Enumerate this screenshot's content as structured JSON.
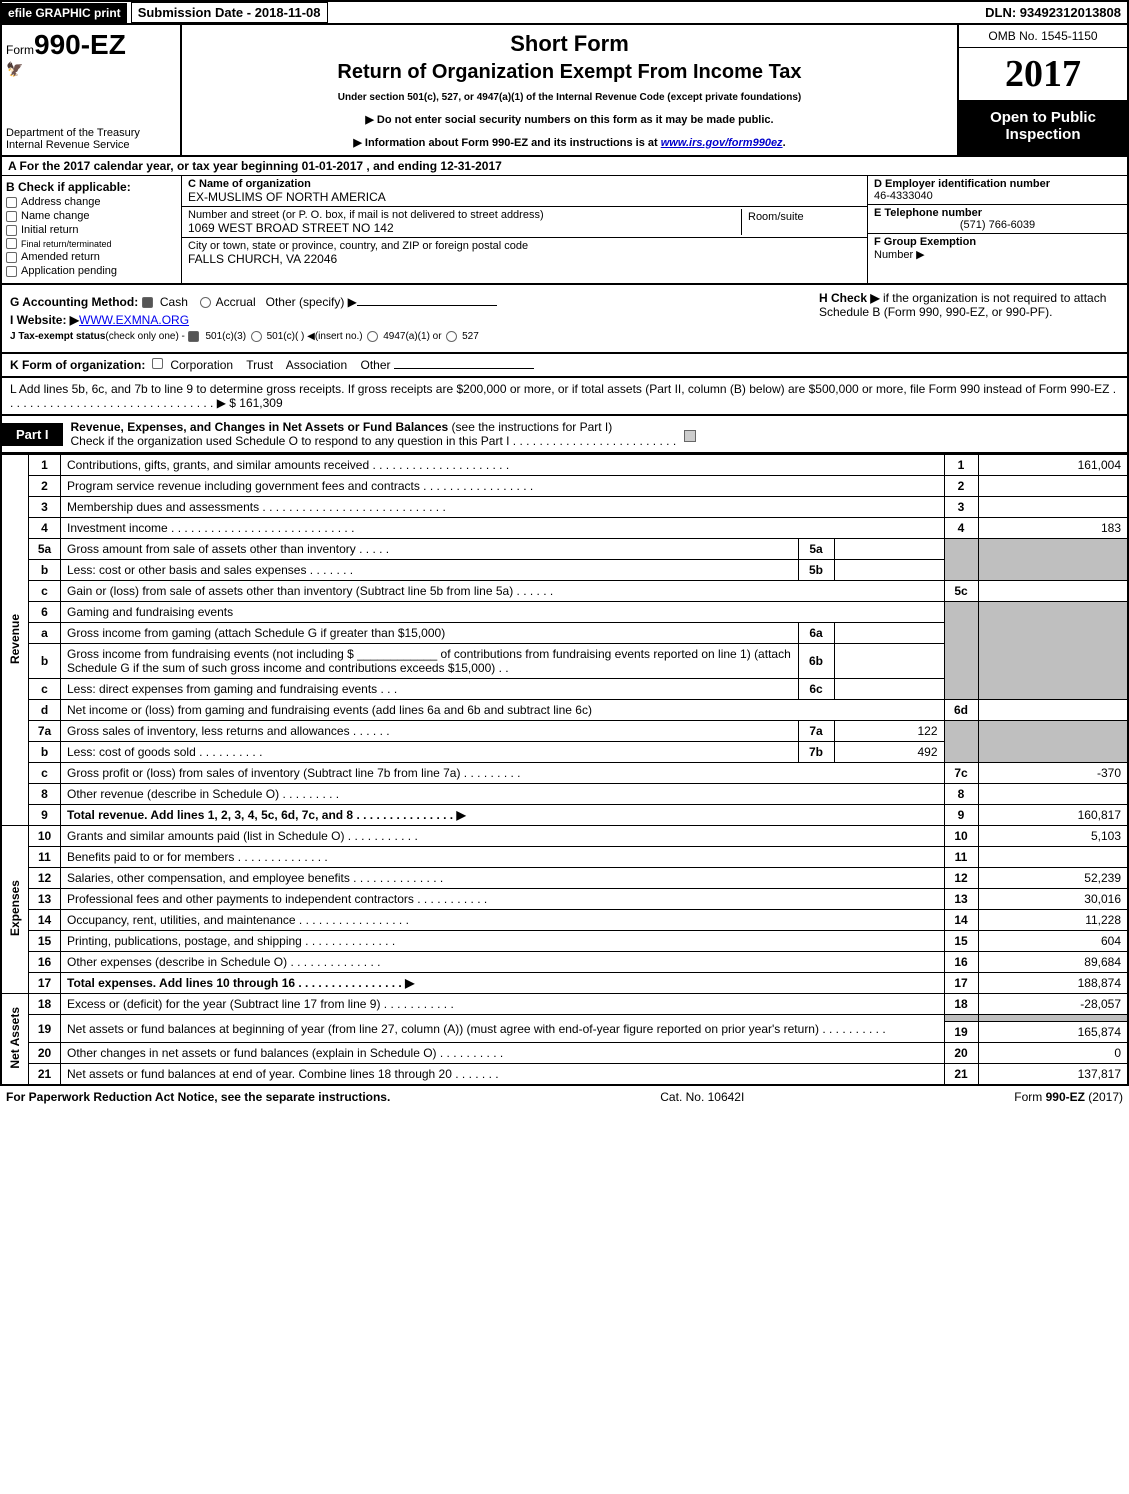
{
  "topbar": {
    "efile": "efile GRAPHIC print",
    "submission_label": "Submission Date - 2018-11-08",
    "dln": "DLN: 93492312013808"
  },
  "header": {
    "form_prefix": "Form",
    "form_code": "990-EZ",
    "dept1": "Department of the Treasury",
    "dept2": "Internal Revenue Service",
    "short_form": "Short Form",
    "title": "Return of Organization Exempt From Income Tax",
    "subline": "Under section 501(c), 527, or 4947(a)(1) of the Internal Revenue Code (except private foundations)",
    "arrow1": "▶ Do not enter social security numbers on this form as it may be made public.",
    "arrow2_pre": "▶ Information about Form 990-EZ and its instructions is at ",
    "arrow2_link": "www.irs.gov/form990ez",
    "arrow2_post": ".",
    "omb": "OMB No. 1545-1150",
    "year": "2017",
    "open1": "Open to Public",
    "open2": "Inspection"
  },
  "sectionA": {
    "text_pre": "A  For the 2017 calendar year, or tax year beginning ",
    "begin": "01-01-2017",
    "mid": "         , and ending ",
    "end": "12-31-2017"
  },
  "sectionB": {
    "lead": "B  Check if applicable:",
    "items": [
      "Address change",
      "Name change",
      "Initial return",
      "Final return/terminated",
      "Amended return",
      "Application pending"
    ]
  },
  "boxC": {
    "lbl": "C Name of organization",
    "val": "EX-MUSLIMS OF NORTH AMERICA",
    "street_lbl": "Number and street (or P. O. box, if mail is not delivered to street address)",
    "street_val": "1069 WEST BROAD STREET NO 142",
    "room_lbl": "Room/suite",
    "city_lbl": "City or town, state or province, country, and ZIP or foreign postal code",
    "city_val": "FALLS CHURCH, VA  22046"
  },
  "boxD": {
    "lbl": "D Employer identification number",
    "val": "46-4333040"
  },
  "boxE": {
    "lbl": "E Telephone number",
    "val": "(571) 766-6039"
  },
  "boxF": {
    "lbl": "F Group Exemption",
    "lbl2": "Number    ▶"
  },
  "lineG": {
    "pre": "G Accounting Method:",
    "cash": "Cash",
    "accrual": "Accrual",
    "other": "Other (specify) ▶"
  },
  "lineH": {
    "pre": "H   Check ▶",
    "post": "if the organization is not required to attach Schedule B (Form 990, 990-EZ, or 990-PF)."
  },
  "lineI": {
    "pre": "I Website: ▶",
    "val": "WWW.EXMNA.ORG"
  },
  "lineJ": {
    "pre": "J Tax-exempt status",
    "small": "(check only one) - ",
    "o1": "501(c)(3)",
    "o2": "501(c)(  ) ◀(insert no.)",
    "o3": "4947(a)(1) or",
    "o4": "527"
  },
  "lineK": {
    "pre": "K Form of organization:",
    "o1": "Corporation",
    "o2": "Trust",
    "o3": "Association",
    "o4": "Other"
  },
  "lineL": {
    "text": "L Add lines 5b, 6c, and 7b to line 9 to determine gross receipts. If gross receipts are $200,000 or more, or if total assets (Part II, column (B) below) are $500,000 or more, file Form 990 instead of Form 990-EZ  . . . . . . . . . . . . . . . . . . . . . . . . . . . . . . . . ▶ $ 161,309"
  },
  "part1": {
    "tab": "Part I",
    "title": "Revenue, Expenses, and Changes in Net Assets or Fund Balances",
    "inst": " (see the instructions for Part I)",
    "sub": "Check if the organization used Schedule O to respond to any question in this Part I . . . . . . . . . . . . . . . . . . . . . . . . ."
  },
  "side_labels": {
    "rev": "Revenue",
    "exp": "Expenses",
    "net": "Net Assets"
  },
  "rows": {
    "1": {
      "n": "1",
      "d": "Contributions, gifts, grants, and similar amounts received . . . . . . . . . . . . . . . . . . . . .",
      "rn": "1",
      "amt": "161,004"
    },
    "2": {
      "n": "2",
      "d": "Program service revenue including government fees and contracts . . . . . . . . . . . . . . . . .",
      "rn": "2",
      "amt": ""
    },
    "3": {
      "n": "3",
      "d": "Membership dues and assessments  . . . . . . . . . . . . . . . . . . . . . . . . . . . .",
      "rn": "3",
      "amt": ""
    },
    "4": {
      "n": "4",
      "d": "Investment income  . . . . . . . . . . . . . . . . . . . . . . . . . . . .",
      "rn": "4",
      "amt": "183"
    },
    "5a": {
      "n": "5a",
      "d": "Gross amount from sale of assets other than inventory  . . . . .",
      "sl": "5a",
      "sv": ""
    },
    "5b": {
      "n": "b",
      "d": "Less: cost or other basis and sales expenses  . . . . . . .",
      "sl": "5b",
      "sv": ""
    },
    "5c": {
      "n": "c",
      "d": "Gain or (loss) from sale of assets other than inventory (Subtract line 5b from line 5a)             .    .    .    .    .    .",
      "rn": "5c",
      "amt": ""
    },
    "6": {
      "n": "6",
      "d": "Gaming and fundraising events"
    },
    "6a": {
      "n": "a",
      "d": "Gross income from gaming (attach Schedule G if greater than $15,000)",
      "sl": "6a",
      "sv": ""
    },
    "6b": {
      "n": "b",
      "d": "Gross income from fundraising events (not including $ ____________ of contributions from fundraising events reported on line 1) (attach Schedule G if the sum of such gross income and contributions exceeds $15,000)      .   .",
      "sl": "6b",
      "sv": ""
    },
    "6c": {
      "n": "c",
      "d": "Less: direct expenses from gaming and fundraising events            .    .    .",
      "sl": "6c",
      "sv": ""
    },
    "6d": {
      "n": "d",
      "d": "Net income or (loss) from gaming and fundraising events (add lines 6a and 6b and subtract line 6c)",
      "rn": "6d",
      "amt": ""
    },
    "7a": {
      "n": "7a",
      "d": "Gross sales of inventory, less returns and allowances              .    .    .    .    .    .",
      "sl": "7a",
      "sv": "122"
    },
    "7b": {
      "n": "b",
      "d": "Less: cost of goods sold                              .    .    .    .    .    .    .    .    .    .",
      "sl": "7b",
      "sv": "492"
    },
    "7c": {
      "n": "c",
      "d": "Gross profit or (loss) from sales of inventory (Subtract line 7b from line 7a)              .    .    .    .    .    .    .    .    .",
      "rn": "7c",
      "amt": "-370"
    },
    "8": {
      "n": "8",
      "d": "Other revenue (describe in Schedule O)                                        .    .    .    .    .    .    .    .    .",
      "rn": "8",
      "amt": ""
    },
    "9": {
      "n": "9",
      "d": "Total revenue. Add lines 1, 2, 3, 4, 5c, 6d, 7c, and 8       .    .    .    .    .    .    .    .    .    .    .    .    .    .    .   ▶",
      "rn": "9",
      "amt": "160,817",
      "bold": true
    },
    "10": {
      "n": "10",
      "d": "Grants and similar amounts paid (list in Schedule O)                          .    .    .    .    .    .    .    .    .    .    .",
      "rn": "10",
      "amt": "5,103"
    },
    "11": {
      "n": "11",
      "d": "Benefits paid to or for members                                    .    .    .    .    .    .    .    .    .    .    .    .    .    .",
      "rn": "11",
      "amt": ""
    },
    "12": {
      "n": "12",
      "d": "Salaries, other compensation, and employee benefits               .    .    .    .    .    .    .    .    .    .    .    .    .    .",
      "rn": "12",
      "amt": "52,239"
    },
    "13": {
      "n": "13",
      "d": "Professional fees and other payments to independent contractors          .    .    .    .    .    .    .    .    .    .    .",
      "rn": "13",
      "amt": "30,016"
    },
    "14": {
      "n": "14",
      "d": "Occupancy, rent, utilities, and maintenance           .    .    .    .    .    .    .    .    .    .    .    .    .    .    .    .    .",
      "rn": "14",
      "amt": "11,228"
    },
    "15": {
      "n": "15",
      "d": "Printing, publications, postage, and shipping                        .    .    .    .    .    .    .    .    .    .    .    .    .    .",
      "rn": "15",
      "amt": "604"
    },
    "16": {
      "n": "16",
      "d": "Other expenses (describe in Schedule O)                              .    .    .    .    .    .    .    .    .    .    .    .    .    .",
      "rn": "16",
      "amt": "89,684"
    },
    "17": {
      "n": "17",
      "d": "Total expenses. Add lines 10 through 16                  .    .    .    .    .    .    .    .    .    .    .    .    .    .    .    .   ▶",
      "rn": "17",
      "amt": "188,874",
      "bold": true
    },
    "18": {
      "n": "18",
      "d": "Excess or (deficit) for the year (Subtract line 17 from line 9)                  .    .    .    .    .    .    .    .    .    .    .",
      "rn": "18",
      "amt": "-28,057"
    },
    "19": {
      "n": "19",
      "d": "Net assets or fund balances at beginning of year (from line 27, column (A)) (must agree with end-of-year figure reported on prior year's return)                               .    .    .    .    .    .    .    .    .    .",
      "rn": "19",
      "amt": "165,874"
    },
    "20": {
      "n": "20",
      "d": "Other changes in net assets or fund balances (explain in Schedule O)          .    .    .    .    .    .    .    .    .    .",
      "rn": "20",
      "amt": "0"
    },
    "21": {
      "n": "21",
      "d": "Net assets or fund balances at end of year. Combine lines 18 through 20              .    .    .    .    .    .    .",
      "rn": "21",
      "amt": "137,817"
    }
  },
  "footer": {
    "left": "For Paperwork Reduction Act Notice, see the separate instructions.",
    "mid": "Cat. No. 10642I",
    "right_pre": "Form ",
    "right_bold": "990-EZ",
    "right_post": " (2017)"
  }
}
